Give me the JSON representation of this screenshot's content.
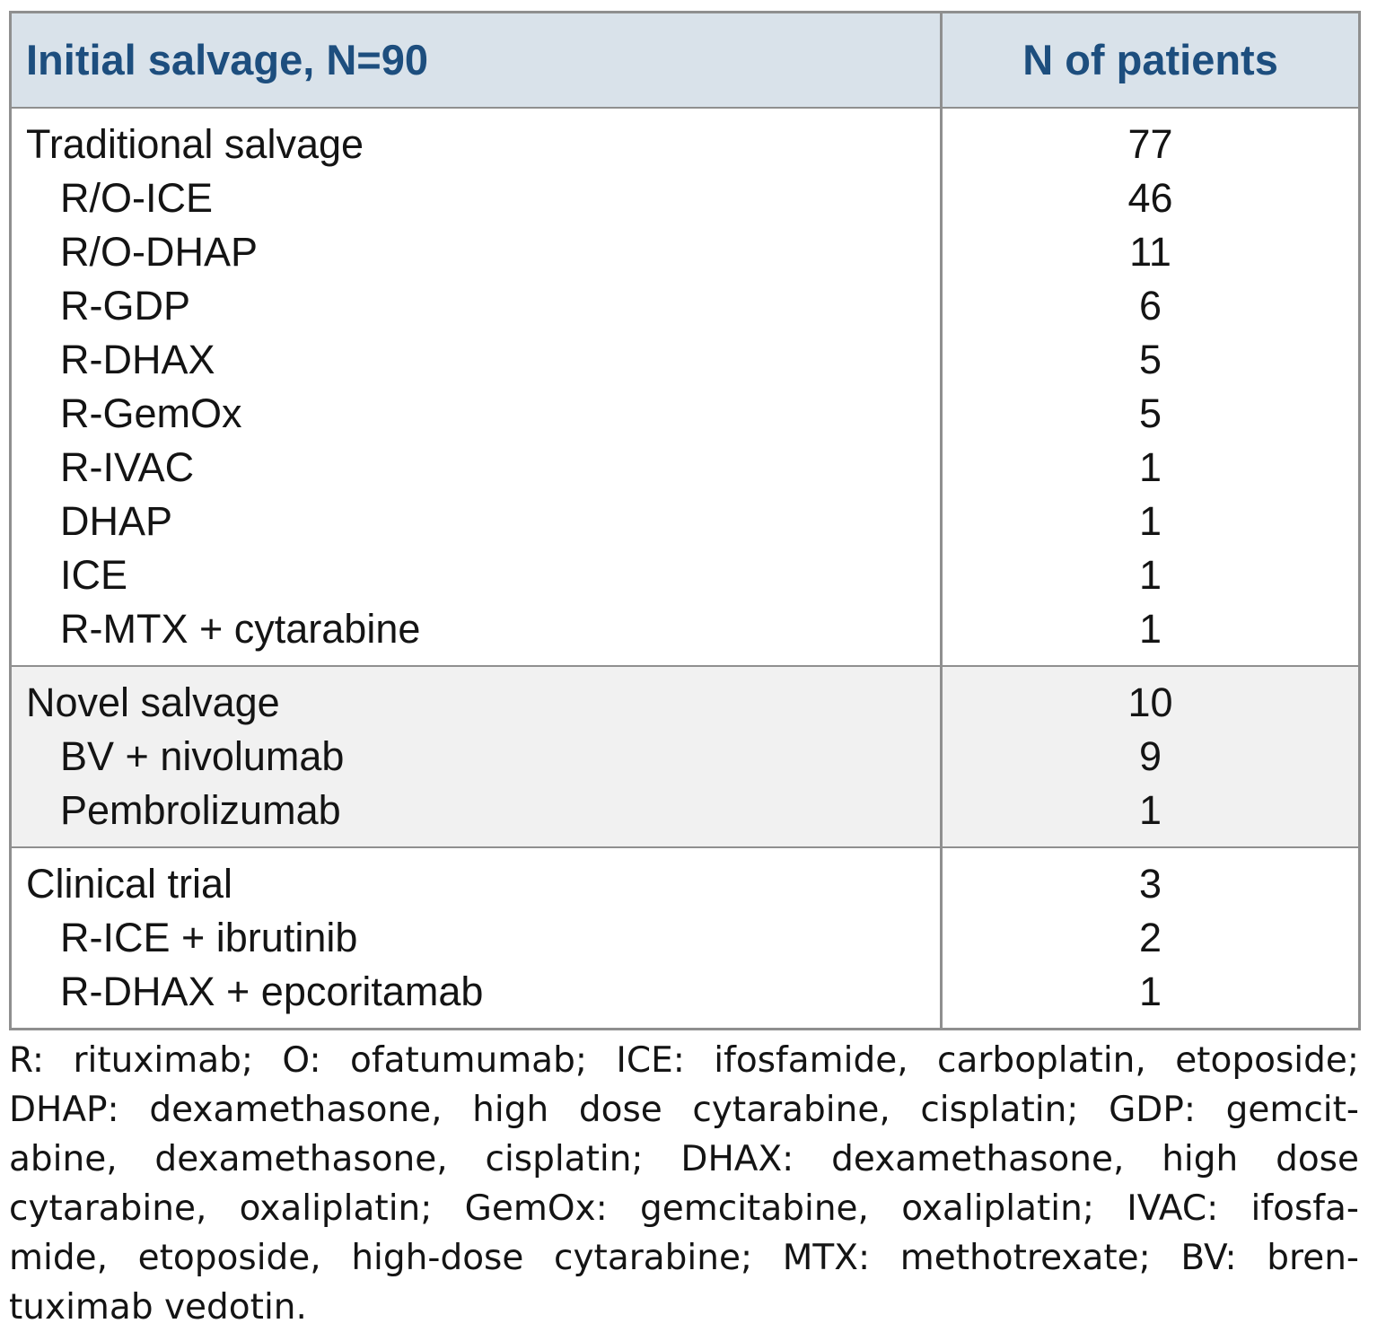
{
  "table": {
    "header": {
      "col1": "Initial salvage, N=90",
      "col2": "N of patients"
    },
    "sections": [
      {
        "name": "traditional-salvage",
        "rows": [
          {
            "label": "Traditional salvage",
            "value": "77",
            "sub": false
          },
          {
            "label": "R/O-ICE",
            "value": "46",
            "sub": true
          },
          {
            "label": "R/O-DHAP",
            "value": "11",
            "sub": true
          },
          {
            "label": "R-GDP",
            "value": "6",
            "sub": true
          },
          {
            "label": "R-DHAX",
            "value": "5",
            "sub": true
          },
          {
            "label": "R-GemOx",
            "value": "5",
            "sub": true
          },
          {
            "label": "R-IVAC",
            "value": "1",
            "sub": true
          },
          {
            "label": "DHAP",
            "value": "1",
            "sub": true
          },
          {
            "label": "ICE",
            "value": "1",
            "sub": true
          },
          {
            "label": "R-MTX + cytarabine",
            "value": "1",
            "sub": true
          }
        ]
      },
      {
        "name": "novel-salvage",
        "rows": [
          {
            "label": "Novel salvage",
            "value": "10",
            "sub": false
          },
          {
            "label": "BV + nivolumab",
            "value": "9",
            "sub": true
          },
          {
            "label": "Pembrolizumab",
            "value": "1",
            "sub": true
          }
        ]
      },
      {
        "name": "clinical-trial",
        "rows": [
          {
            "label": "Clinical trial",
            "value": "3",
            "sub": false
          },
          {
            "label": "R-ICE + ibrutinib",
            "value": "2",
            "sub": true
          },
          {
            "label": "R-DHAX + epcoritamab",
            "value": "1",
            "sub": true
          }
        ]
      }
    ]
  },
  "footnote": {
    "lines": [
      "R: rituximab; O: ofatumumab; ICE: ifosfamide, carboplatin, etoposide;",
      "DHAP: dexamethasone, high dose cytarabine, cisplatin; GDP: gemcit-",
      "abine, dexamethasone, cisplatin; DHAX: dexamethasone, high dose",
      "cytarabine, oxaliplatin; GemOx: gemcitabine, oxaliplatin; IVAC: ifosfa-",
      "mide, etoposide, high-dose cytarabine; MTX: methotrexate; BV: bren-",
      "tuximab vedotin."
    ]
  },
  "colors": {
    "header_bg": "#d9e2ea",
    "header_text": "#1d4e7e",
    "border": "#8f8f8f",
    "section_alt_bg": "#f1f1f1",
    "body_text": "#141414"
  }
}
